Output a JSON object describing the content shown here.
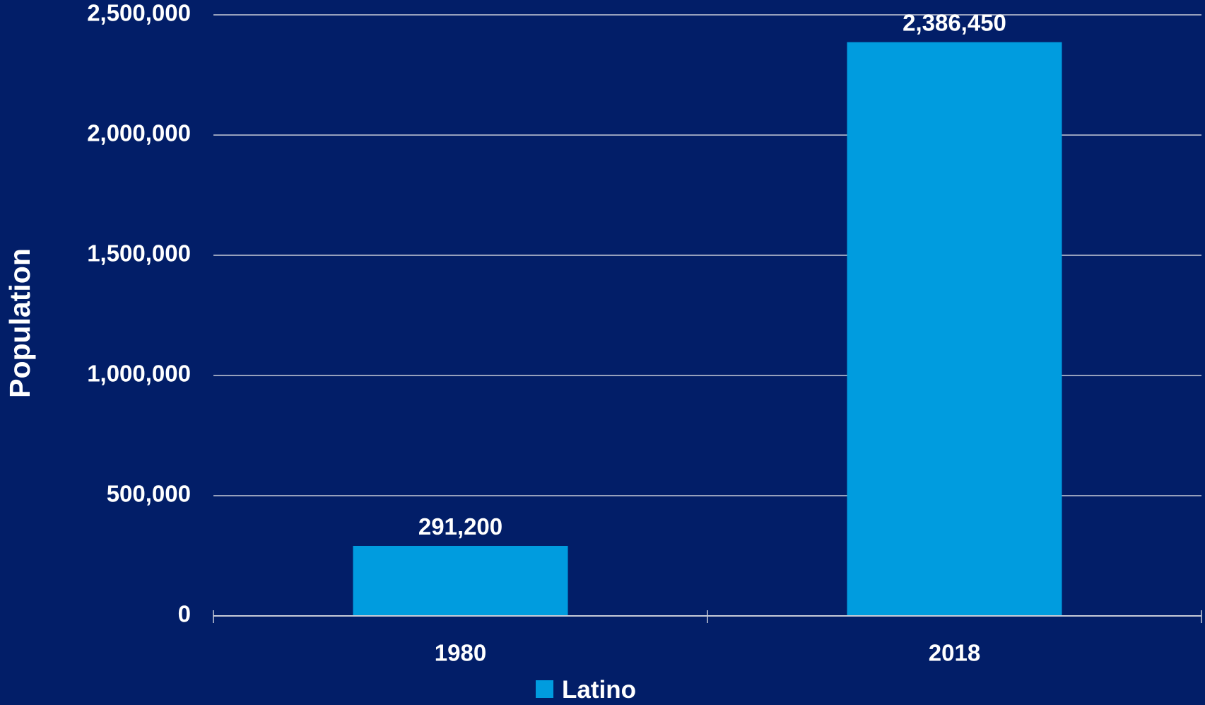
{
  "colors": {
    "background": "#021e68",
    "bar": "#009cdf",
    "grid": "#c7cbd8",
    "text": "#ffffff"
  },
  "chart_data": {
    "type": "bar",
    "title": "",
    "xlabel": "",
    "ylabel": "Population",
    "categories": [
      "1980",
      "2018"
    ],
    "series": [
      {
        "name": "Latino",
        "values": [
          291200,
          2386450
        ]
      }
    ],
    "data_labels": [
      "291,200",
      "2,386,450"
    ],
    "ylim": [
      0,
      2500000
    ],
    "yticks": [
      0,
      500000,
      1000000,
      1500000,
      2000000,
      2500000
    ],
    "ytick_labels": [
      "0",
      "500,000",
      "1,000,000",
      "1,500,000",
      "2,000,000",
      "2,500,000"
    ],
    "grid": true,
    "legend": {
      "position": "bottom",
      "entries": [
        "Latino"
      ]
    }
  }
}
